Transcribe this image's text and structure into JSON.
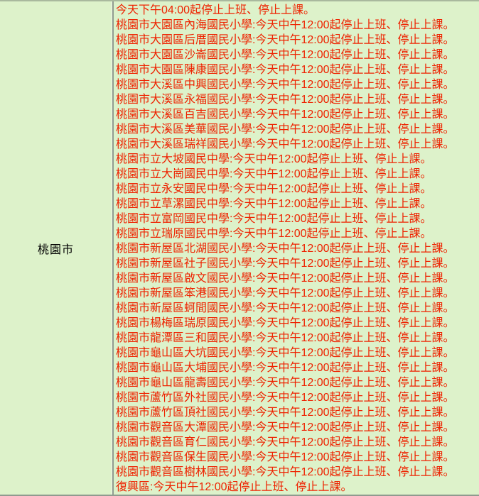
{
  "region": {
    "label": "桃園市"
  },
  "announcements": [
    "今天下午04:00起停止上班、停止上課。",
    "桃園市大園區內海國民小學:今天中午12:00起停止上班、停止上課。",
    "桃園市大園區后厝國民小學:今天中午12:00起停止上班、停止上課。",
    "桃園市大園區沙崙國民小學:今天中午12:00起停止上班、停止上課。",
    "桃園市大園區陳康國民小學:今天中午12:00起停止上班、停止上課。",
    "桃園市大溪區中興國民小學:今天中午12:00起停止上班、停止上課。",
    "桃園市大溪區永福國民小學:今天中午12:00起停止上班、停止上課。",
    "桃園市大溪區百吉國民小學:今天中午12:00起停止上班、停止上課。",
    "桃園市大溪區美華國民小學:今天中午12:00起停止上班、停止上課。",
    "桃園市大溪區瑞祥國民小學:今天中午12:00起停止上班、停止上課。",
    "桃園市立大坡國民中學:今天中午12:00起停止上班、停止上課。",
    "桃園市立大崗國民中學:今天中午12:00起停止上班、停止上課。",
    "桃園市立永安國民中學:今天中午12:00起停止上班、停止上課。",
    "桃園市立草漯國民中學:今天中午12:00起停止上班、停止上課。",
    "桃園市立富岡國民中學:今天中午12:00起停止上班、停止上課。",
    "桃園市立瑞原國民中學:今天中午12:00起停止上班、停止上課。",
    "桃園市新屋區北湖國民小學:今天中午12:00起停止上班、停止上課。",
    "桃園市新屋區社子國民小學:今天中午12:00起停止上班、停止上課。",
    "桃園市新屋區啟文國民小學:今天中午12:00起停止上班、停止上課。",
    "桃園市新屋區笨港國民小學:今天中午12:00起停止上班、停止上課。",
    "桃園市新屋區蚵間國民小學:今天中午12:00起停止上班、停止上課。",
    "桃園市楊梅區瑞原國民小學:今天中午12:00起停止上班、停止上課。",
    "桃園市龍潭區三和國民小學:今天中午12:00起停止上班、停止上課。",
    "桃園市龜山區大坑國民小學:今天中午12:00起停止上班、停止上課。",
    "桃園市龜山區大埔國民小學:今天中午12:00起停止上班、停止上課。",
    "桃園市龜山區龍壽國民小學:今天中午12:00起停止上班、停止上課。",
    "桃園市蘆竹區外社國民小學:今天中午12:00起停止上班、停止上課。",
    "桃園市蘆竹區頂社國民小學:今天中午12:00起停止上班、停止上課。",
    "桃園市觀音區大潭國民小學:今天中午12:00起停止上班、停止上課。",
    "桃園市觀音區育仁國民小學:今天中午12:00起停止上班、停止上課。",
    "桃園市觀音區保生國民小學:今天中午12:00起停止上班、停止上課。",
    "桃園市觀音區樹林國民小學:今天中午12:00起停止上班、停止上課。",
    "復興區:今天中午12:00起停止上班、停止上課。"
  ],
  "colors": {
    "cell_background": "#ddf2ca",
    "announcement_text": "#ee2200",
    "region_text": "#000000",
    "border_dark": "#8f9b8f",
    "border_light": "#f2f8ea",
    "border_top": "#a9b99e"
  }
}
